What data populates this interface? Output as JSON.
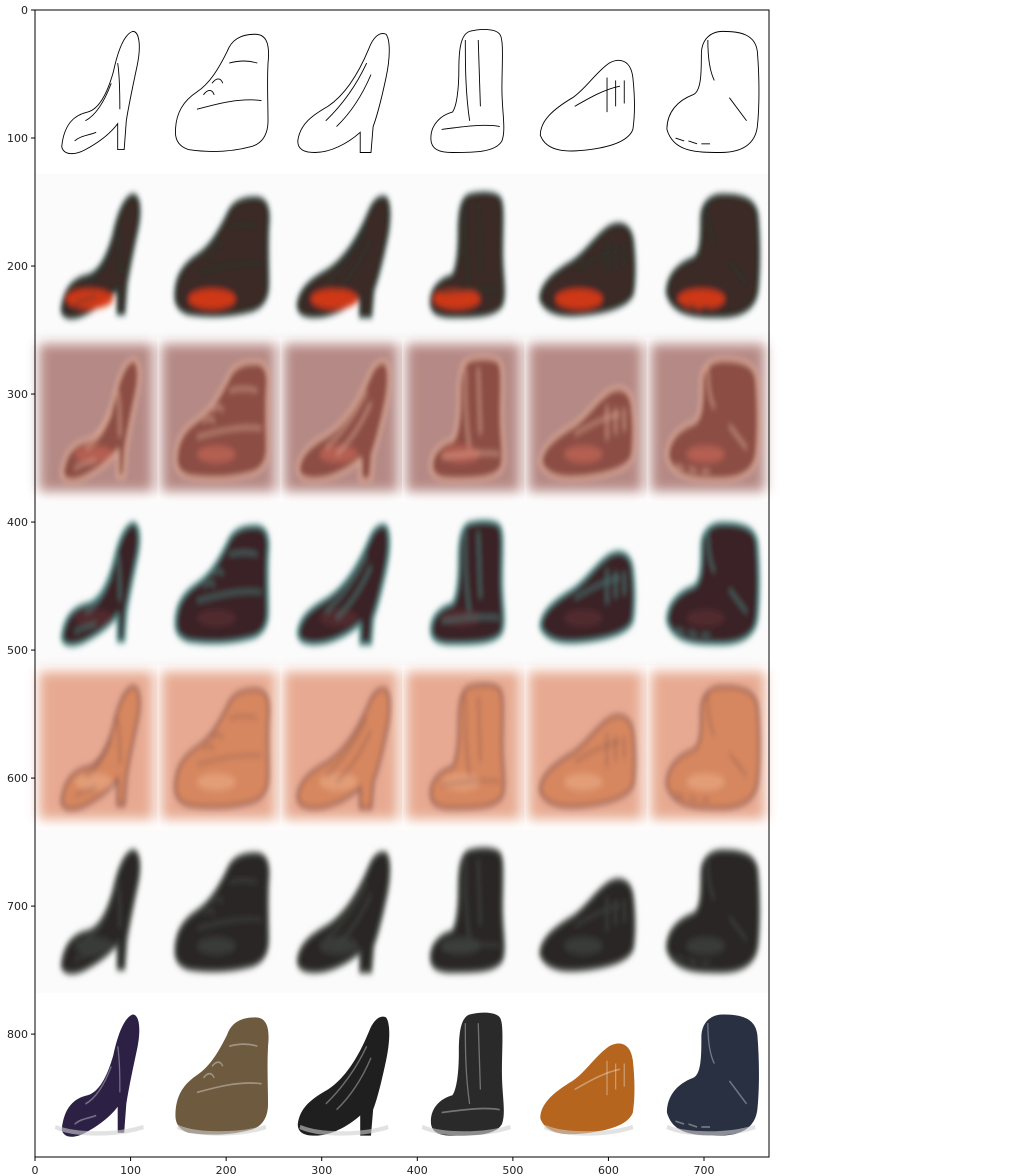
{
  "figure": {
    "x_ticks": [
      {
        "value": 0,
        "label": "0"
      },
      {
        "value": 100,
        "label": "100"
      },
      {
        "value": 200,
        "label": "200"
      },
      {
        "value": 300,
        "label": "300"
      },
      {
        "value": 400,
        "label": "400"
      },
      {
        "value": 500,
        "label": "500"
      },
      {
        "value": 600,
        "label": "600"
      },
      {
        "value": 700,
        "label": "700"
      }
    ],
    "y_ticks": [
      {
        "value": 0,
        "label": "0"
      },
      {
        "value": 100,
        "label": "100"
      },
      {
        "value": 200,
        "label": "200"
      },
      {
        "value": 300,
        "label": "300"
      },
      {
        "value": 400,
        "label": "400"
      },
      {
        "value": 500,
        "label": "500"
      },
      {
        "value": 600,
        "label": "600"
      },
      {
        "value": 700,
        "label": "700"
      },
      {
        "value": 800,
        "label": "800"
      }
    ],
    "x_range": [
      0,
      768
    ],
    "y_range": [
      0,
      896
    ],
    "grid": {
      "columns": 6,
      "rows": 7,
      "row_kinds": [
        "edge-sketch",
        "generated",
        "generated",
        "generated",
        "generated",
        "generated",
        "photo"
      ],
      "row_palettes": [
        {
          "bg": "#ffffff",
          "shoe": "#ffffff",
          "detail": "#000000",
          "accent": "#000000"
        },
        {
          "bg": "#fbfbfb",
          "shoe": "#3a2b25",
          "detail": "#1d3830",
          "accent": "#e03a12"
        },
        {
          "bg": "#a9756f",
          "shoe": "#8c4e44",
          "detail": "#e7b39e",
          "accent": "#ff7d6a"
        },
        {
          "bg": "#fbfbfb",
          "shoe": "#3b2226",
          "detail": "#4f8e8a",
          "accent": "#7a3842"
        },
        {
          "bg": "#e39b7e",
          "shoe": "#d7875f",
          "detail": "#8a5a55",
          "accent": "#f7c6a6"
        },
        {
          "bg": "#fbfbfb",
          "shoe": "#292825",
          "detail": "#454c44",
          "accent": "#5a5e58"
        },
        {
          "bg": "#ffffff",
          "shoe": "#333333",
          "detail": "#555555",
          "accent": "#999999"
        }
      ],
      "photo_colors": [
        "#2c2145",
        "#6e5a3f",
        "#1f1f1f",
        "#2a2a2a",
        "#b5651d",
        "#283042"
      ],
      "columns_shapes": [
        "high-heel",
        "hiking-boot",
        "pump",
        "short-boot",
        "moccasin",
        "bootie"
      ]
    }
  }
}
